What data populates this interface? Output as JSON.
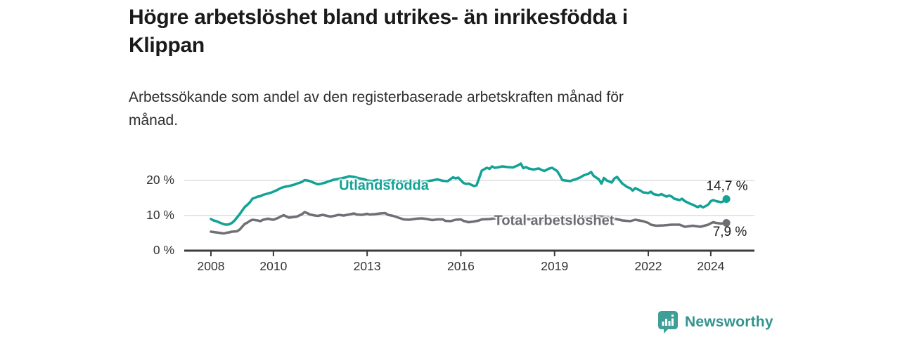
{
  "header": {
    "title_lines": [
      "Högre arbetslöshet bland utrikes- än inrikesfödda i",
      "Klippan"
    ],
    "subtitle_lines": [
      "Arbetssökande som andel av den registerbaserade arbetskraften månad för",
      "månad."
    ]
  },
  "chart_data": {
    "type": "line",
    "title": "Högre arbetslöshet bland utrikes- än inrikesfödda i Klippan",
    "xlabel": "",
    "ylabel": "Arbetssökande som andel av den registerbaserade arbetskraften, procent",
    "x_unit": "decimal_year",
    "xlim": [
      2007.15,
      2025.4
    ],
    "ylim": [
      0,
      26
    ],
    "grid": "horizontal",
    "legend_position": "inline-labels",
    "xticks": [
      {
        "value": 2008,
        "label": "2008"
      },
      {
        "value": 2010,
        "label": "2010"
      },
      {
        "value": 2013,
        "label": "2013"
      },
      {
        "value": 2016,
        "label": "2016"
      },
      {
        "value": 2019,
        "label": "2019"
      },
      {
        "value": 2022,
        "label": "2022"
      },
      {
        "value": 2024,
        "label": "2024"
      }
    ],
    "yticks": [
      {
        "value": 0,
        "label": "0 %"
      },
      {
        "value": 10,
        "label": "10 %"
      },
      {
        "value": 20,
        "label": "20 %"
      }
    ],
    "colors": {
      "utlandsfodda": "#12a296",
      "total": "#706f75",
      "total_label": "#6e6c72",
      "grid": "#dedede",
      "axis": "#3c3c3c",
      "text": "#1a1a1a"
    },
    "series": [
      {
        "name": "Utlandsfödda",
        "label": "Utlandsfödda",
        "color": "#12a296",
        "end_value": 14.7,
        "end_label": "14,7 %",
        "points": [
          [
            2008.0,
            9.0
          ],
          [
            2008.08,
            8.6
          ],
          [
            2008.17,
            8.4
          ],
          [
            2008.25,
            8.1
          ],
          [
            2008.33,
            7.8
          ],
          [
            2008.42,
            7.5
          ],
          [
            2008.5,
            7.4
          ],
          [
            2008.58,
            7.5
          ],
          [
            2008.67,
            7.9
          ],
          [
            2008.75,
            8.5
          ],
          [
            2008.83,
            9.4
          ],
          [
            2008.92,
            10.4
          ],
          [
            2009.0,
            11.4
          ],
          [
            2009.08,
            12.4
          ],
          [
            2009.17,
            13.1
          ],
          [
            2009.25,
            13.8
          ],
          [
            2009.33,
            14.8
          ],
          [
            2009.42,
            15.1
          ],
          [
            2009.5,
            15.4
          ],
          [
            2009.58,
            15.5
          ],
          [
            2009.67,
            15.9
          ],
          [
            2009.75,
            16.1
          ],
          [
            2009.83,
            16.3
          ],
          [
            2009.92,
            16.5
          ],
          [
            2010.0,
            16.8
          ],
          [
            2010.08,
            17.1
          ],
          [
            2010.17,
            17.5
          ],
          [
            2010.25,
            17.9
          ],
          [
            2010.33,
            18.1
          ],
          [
            2010.42,
            18.3
          ],
          [
            2010.5,
            18.4
          ],
          [
            2010.58,
            18.6
          ],
          [
            2010.67,
            18.8
          ],
          [
            2010.75,
            19.1
          ],
          [
            2010.83,
            19.3
          ],
          [
            2010.92,
            19.6
          ],
          [
            2011.0,
            20.1
          ],
          [
            2011.08,
            20.0
          ],
          [
            2011.17,
            19.8
          ],
          [
            2011.25,
            19.5
          ],
          [
            2011.33,
            19.2
          ],
          [
            2011.42,
            18.9
          ],
          [
            2011.5,
            19.0
          ],
          [
            2011.58,
            19.2
          ],
          [
            2011.67,
            19.4
          ],
          [
            2011.75,
            19.7
          ],
          [
            2011.83,
            19.9
          ],
          [
            2011.92,
            20.2
          ],
          [
            2012.0,
            20.3
          ],
          [
            2012.17,
            20.6
          ],
          [
            2012.33,
            20.9
          ],
          [
            2012.42,
            21.2
          ],
          [
            2012.58,
            21.0
          ],
          [
            2012.75,
            20.6
          ],
          [
            2012.92,
            20.3
          ],
          [
            2013.0,
            20.0
          ],
          [
            2013.17,
            19.8
          ],
          [
            2013.33,
            20.1
          ],
          [
            2013.5,
            19.7
          ],
          [
            2013.67,
            19.9
          ],
          [
            2013.83,
            20.2
          ],
          [
            2013.92,
            19.8
          ],
          [
            2014.08,
            19.5
          ],
          [
            2014.25,
            19.7
          ],
          [
            2014.42,
            19.4
          ],
          [
            2014.58,
            19.6
          ],
          [
            2014.75,
            19.6
          ],
          [
            2014.92,
            19.8
          ],
          [
            2015.08,
            20.0
          ],
          [
            2015.25,
            20.3
          ],
          [
            2015.42,
            19.9
          ],
          [
            2015.58,
            19.8
          ],
          [
            2015.75,
            20.9
          ],
          [
            2015.83,
            20.6
          ],
          [
            2015.92,
            20.8
          ],
          [
            2016.08,
            19.3
          ],
          [
            2016.17,
            19.0
          ],
          [
            2016.25,
            19.1
          ],
          [
            2016.42,
            18.4
          ],
          [
            2016.5,
            18.6
          ],
          [
            2016.58,
            20.5
          ],
          [
            2016.67,
            22.8
          ],
          [
            2016.75,
            23.2
          ],
          [
            2016.83,
            23.6
          ],
          [
            2016.92,
            23.3
          ],
          [
            2017.0,
            24.0
          ],
          [
            2017.08,
            23.6
          ],
          [
            2017.17,
            23.7
          ],
          [
            2017.33,
            24.0
          ],
          [
            2017.5,
            23.8
          ],
          [
            2017.67,
            23.7
          ],
          [
            2017.83,
            24.3
          ],
          [
            2017.92,
            24.8
          ],
          [
            2018.0,
            23.5
          ],
          [
            2018.08,
            23.8
          ],
          [
            2018.17,
            23.4
          ],
          [
            2018.33,
            23.1
          ],
          [
            2018.42,
            23.3
          ],
          [
            2018.5,
            23.4
          ],
          [
            2018.58,
            23.0
          ],
          [
            2018.67,
            22.7
          ],
          [
            2018.83,
            23.4
          ],
          [
            2018.92,
            23.6
          ],
          [
            2019.08,
            22.7
          ],
          [
            2019.17,
            21.4
          ],
          [
            2019.25,
            20.1
          ],
          [
            2019.42,
            19.9
          ],
          [
            2019.5,
            19.8
          ],
          [
            2019.58,
            20.1
          ],
          [
            2019.67,
            20.3
          ],
          [
            2019.83,
            20.9
          ],
          [
            2019.92,
            21.4
          ],
          [
            2020.08,
            21.9
          ],
          [
            2020.17,
            22.4
          ],
          [
            2020.25,
            21.3
          ],
          [
            2020.42,
            20.3
          ],
          [
            2020.5,
            19.1
          ],
          [
            2020.58,
            20.7
          ],
          [
            2020.67,
            20.0
          ],
          [
            2020.83,
            19.4
          ],
          [
            2020.92,
            20.6
          ],
          [
            2021.0,
            21.0
          ],
          [
            2021.08,
            20.1
          ],
          [
            2021.17,
            19.1
          ],
          [
            2021.33,
            18.1
          ],
          [
            2021.42,
            17.8
          ],
          [
            2021.5,
            17.1
          ],
          [
            2021.58,
            17.8
          ],
          [
            2021.75,
            17.1
          ],
          [
            2021.83,
            16.6
          ],
          [
            2022.0,
            16.4
          ],
          [
            2022.08,
            16.8
          ],
          [
            2022.17,
            16.1
          ],
          [
            2022.33,
            15.8
          ],
          [
            2022.42,
            16.1
          ],
          [
            2022.58,
            15.4
          ],
          [
            2022.67,
            15.7
          ],
          [
            2022.75,
            15.4
          ],
          [
            2022.83,
            14.8
          ],
          [
            2023.0,
            14.4
          ],
          [
            2023.08,
            14.8
          ],
          [
            2023.17,
            14.1
          ],
          [
            2023.33,
            13.4
          ],
          [
            2023.42,
            13.1
          ],
          [
            2023.58,
            12.4
          ],
          [
            2023.67,
            12.8
          ],
          [
            2023.75,
            12.3
          ],
          [
            2023.92,
            13.1
          ],
          [
            2024.0,
            14.1
          ],
          [
            2024.08,
            14.4
          ],
          [
            2024.17,
            14.1
          ],
          [
            2024.33,
            13.8
          ],
          [
            2024.42,
            14.1
          ],
          [
            2024.5,
            14.7
          ]
        ]
      },
      {
        "name": "Total arbetslöshet",
        "label": "Total arbetslöshet",
        "color": "#706f75",
        "end_value": 7.9,
        "end_label": "7,9 %",
        "points": [
          [
            2008.0,
            5.4
          ],
          [
            2008.08,
            5.3
          ],
          [
            2008.25,
            5.1
          ],
          [
            2008.33,
            5.0
          ],
          [
            2008.42,
            4.9
          ],
          [
            2008.5,
            5.1
          ],
          [
            2008.58,
            5.2
          ],
          [
            2008.67,
            5.4
          ],
          [
            2008.83,
            5.5
          ],
          [
            2008.92,
            6.0
          ],
          [
            2009.0,
            6.8
          ],
          [
            2009.08,
            7.6
          ],
          [
            2009.17,
            8.0
          ],
          [
            2009.25,
            8.5
          ],
          [
            2009.33,
            8.8
          ],
          [
            2009.5,
            8.6
          ],
          [
            2009.58,
            8.4
          ],
          [
            2009.67,
            8.8
          ],
          [
            2009.83,
            9.1
          ],
          [
            2009.92,
            8.9
          ],
          [
            2010.0,
            8.8
          ],
          [
            2010.17,
            9.4
          ],
          [
            2010.25,
            9.8
          ],
          [
            2010.33,
            10.1
          ],
          [
            2010.42,
            9.7
          ],
          [
            2010.5,
            9.4
          ],
          [
            2010.67,
            9.6
          ],
          [
            2010.75,
            9.7
          ],
          [
            2010.92,
            10.4
          ],
          [
            2011.0,
            11.0
          ],
          [
            2011.08,
            10.7
          ],
          [
            2011.17,
            10.3
          ],
          [
            2011.33,
            10.0
          ],
          [
            2011.42,
            9.9
          ],
          [
            2011.58,
            10.2
          ],
          [
            2011.67,
            10.0
          ],
          [
            2011.83,
            9.7
          ],
          [
            2012.0,
            10.0
          ],
          [
            2012.08,
            10.2
          ],
          [
            2012.25,
            10.0
          ],
          [
            2012.42,
            10.3
          ],
          [
            2012.58,
            10.6
          ],
          [
            2012.67,
            10.3
          ],
          [
            2012.83,
            10.2
          ],
          [
            2013.0,
            10.5
          ],
          [
            2013.08,
            10.3
          ],
          [
            2013.25,
            10.4
          ],
          [
            2013.42,
            10.6
          ],
          [
            2013.58,
            10.7
          ],
          [
            2013.67,
            10.2
          ],
          [
            2013.83,
            9.9
          ],
          [
            2014.0,
            9.4
          ],
          [
            2014.17,
            8.9
          ],
          [
            2014.33,
            8.8
          ],
          [
            2014.42,
            8.9
          ],
          [
            2014.58,
            9.1
          ],
          [
            2014.75,
            9.2
          ],
          [
            2014.92,
            9.0
          ],
          [
            2015.08,
            8.7
          ],
          [
            2015.25,
            8.9
          ],
          [
            2015.42,
            8.9
          ],
          [
            2015.5,
            8.5
          ],
          [
            2015.67,
            8.4
          ],
          [
            2015.83,
            8.8
          ],
          [
            2016.0,
            8.9
          ],
          [
            2016.08,
            8.5
          ],
          [
            2016.25,
            8.1
          ],
          [
            2016.42,
            8.3
          ],
          [
            2016.58,
            8.6
          ],
          [
            2016.67,
            8.9
          ],
          [
            2016.92,
            9.0
          ],
          [
            2017.08,
            9.2
          ],
          [
            2017.33,
            9.0
          ],
          [
            2017.58,
            8.8
          ],
          [
            2017.83,
            9.0
          ],
          [
            2018.0,
            9.1
          ],
          [
            2018.25,
            8.9
          ],
          [
            2018.42,
            8.7
          ],
          [
            2018.67,
            8.6
          ],
          [
            2018.92,
            8.8
          ],
          [
            2019.17,
            8.6
          ],
          [
            2019.42,
            8.7
          ],
          [
            2019.58,
            8.9
          ],
          [
            2019.83,
            9.1
          ],
          [
            2020.08,
            9.4
          ],
          [
            2020.25,
            9.9
          ],
          [
            2020.5,
            9.7
          ],
          [
            2020.75,
            9.5
          ],
          [
            2020.92,
            9.1
          ],
          [
            2021.08,
            8.8
          ],
          [
            2021.17,
            8.6
          ],
          [
            2021.42,
            8.4
          ],
          [
            2021.58,
            8.8
          ],
          [
            2021.83,
            8.4
          ],
          [
            2022.0,
            7.9
          ],
          [
            2022.08,
            7.4
          ],
          [
            2022.25,
            7.1
          ],
          [
            2022.5,
            7.2
          ],
          [
            2022.75,
            7.4
          ],
          [
            2023.0,
            7.4
          ],
          [
            2023.17,
            6.8
          ],
          [
            2023.42,
            7.1
          ],
          [
            2023.67,
            6.8
          ],
          [
            2023.92,
            7.4
          ],
          [
            2024.0,
            7.8
          ],
          [
            2024.08,
            8.1
          ],
          [
            2024.17,
            7.9
          ],
          [
            2024.33,
            7.7
          ],
          [
            2024.5,
            7.9
          ]
        ]
      }
    ]
  },
  "footer": {
    "brand": "Newsworthy",
    "brand_color": "#31948d",
    "logo_icon": "newsworthy-speech-bubble-bar-chart-icon"
  }
}
